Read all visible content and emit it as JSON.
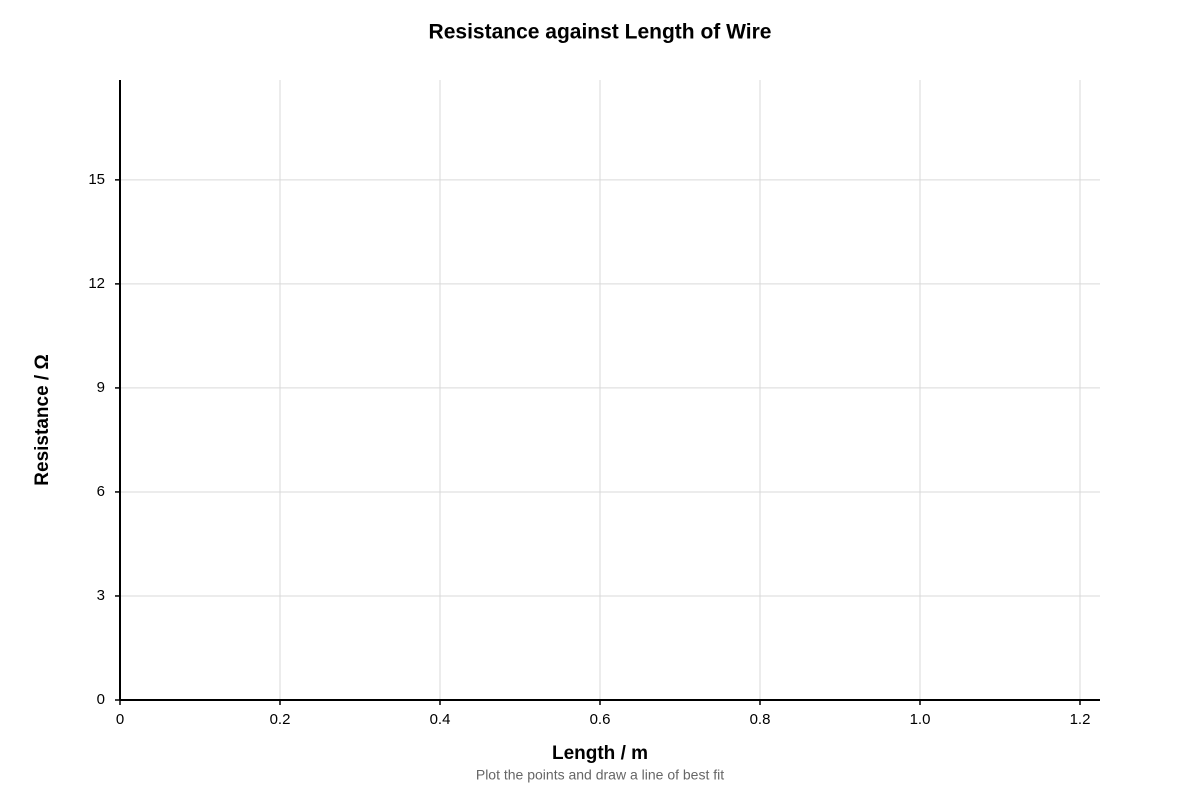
{
  "chart_data": {
    "type": "scatter",
    "title": "Resistance against Length of Wire",
    "x_label": "Length / m",
    "y_label": "Resistance / Ω",
    "note": "Plot the points and draw a line of best fit",
    "xlim": [
      0,
      1.225
    ],
    "ylim": [
      0,
      17.88
    ],
    "xticks": [
      0,
      0.2,
      0.4,
      0.6,
      0.8,
      {
        "value": 1,
        "label": "1.0"
      },
      1.2
    ],
    "yticks": [
      0,
      3,
      6,
      9,
      12,
      15
    ],
    "grid": true
  }
}
